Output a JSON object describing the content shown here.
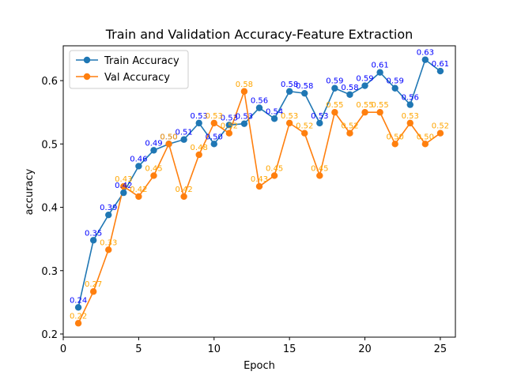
{
  "chart_data": {
    "type": "line",
    "title": "Train and Validation Accuracy-Feature Extraction",
    "xlabel": "Epoch",
    "ylabel": "accuracy",
    "xlim": [
      0,
      26
    ],
    "ylim": [
      0.195,
      0.655
    ],
    "x_ticks": [
      0,
      5,
      10,
      15,
      20,
      25
    ],
    "y_ticks": [
      0.2,
      0.3,
      0.4,
      0.5,
      0.6
    ],
    "x_tick_labels": [
      "0",
      "5",
      "10",
      "15",
      "20",
      "25"
    ],
    "y_tick_labels": [
      "0.2",
      "0.3",
      "0.4",
      "0.5",
      "0.6"
    ],
    "grid": false,
    "legend_position": "upper-left",
    "x": [
      1,
      2,
      3,
      4,
      5,
      6,
      7,
      8,
      9,
      10,
      11,
      12,
      13,
      14,
      15,
      16,
      17,
      18,
      19,
      20,
      21,
      22,
      23,
      24,
      25
    ],
    "series": [
      {
        "name": "Train Accuracy",
        "color": "#1f77b4",
        "label_color": "#0000ff",
        "values": [
          0.242,
          0.348,
          0.388,
          0.423,
          0.465,
          0.49,
          0.5,
          0.507,
          0.533,
          0.5,
          0.53,
          0.532,
          0.557,
          0.54,
          0.583,
          0.58,
          0.533,
          0.588,
          0.578,
          0.592,
          0.613,
          0.588,
          0.562,
          0.633,
          0.615
        ],
        "labels": [
          "0.24",
          "0.35",
          "0.39",
          "0.42",
          "0.46",
          "0.49",
          "0.50",
          "0.51",
          "0.53",
          "0.50",
          "0.53",
          "0.53",
          "0.56",
          "0.54",
          "0.58",
          "0.58",
          "0.53",
          "0.59",
          "0.58",
          "0.59",
          "0.61",
          "0.59",
          "0.56",
          "0.63",
          "0.61"
        ]
      },
      {
        "name": "Val Accuracy",
        "color": "#ff7f0e",
        "label_color": "#ffa500",
        "values": [
          0.217,
          0.267,
          0.333,
          0.433,
          0.417,
          0.45,
          0.5,
          0.417,
          0.483,
          0.533,
          0.517,
          0.583,
          0.433,
          0.45,
          0.533,
          0.517,
          0.45,
          0.55,
          0.517,
          0.55,
          0.55,
          0.5,
          0.533,
          0.5,
          0.517
        ],
        "labels": [
          "0.22",
          "0.27",
          "0.33",
          "0.43",
          "0.42",
          "0.45",
          "0.50",
          "0.42",
          "0.48",
          "0.53",
          "0.52",
          "0.58",
          "0.43",
          "0.45",
          "0.53",
          "0.52",
          "0.45",
          "0.55",
          "0.52",
          "0.55",
          "0.55",
          "0.50",
          "0.53",
          "0.50",
          "0.52"
        ]
      }
    ]
  }
}
